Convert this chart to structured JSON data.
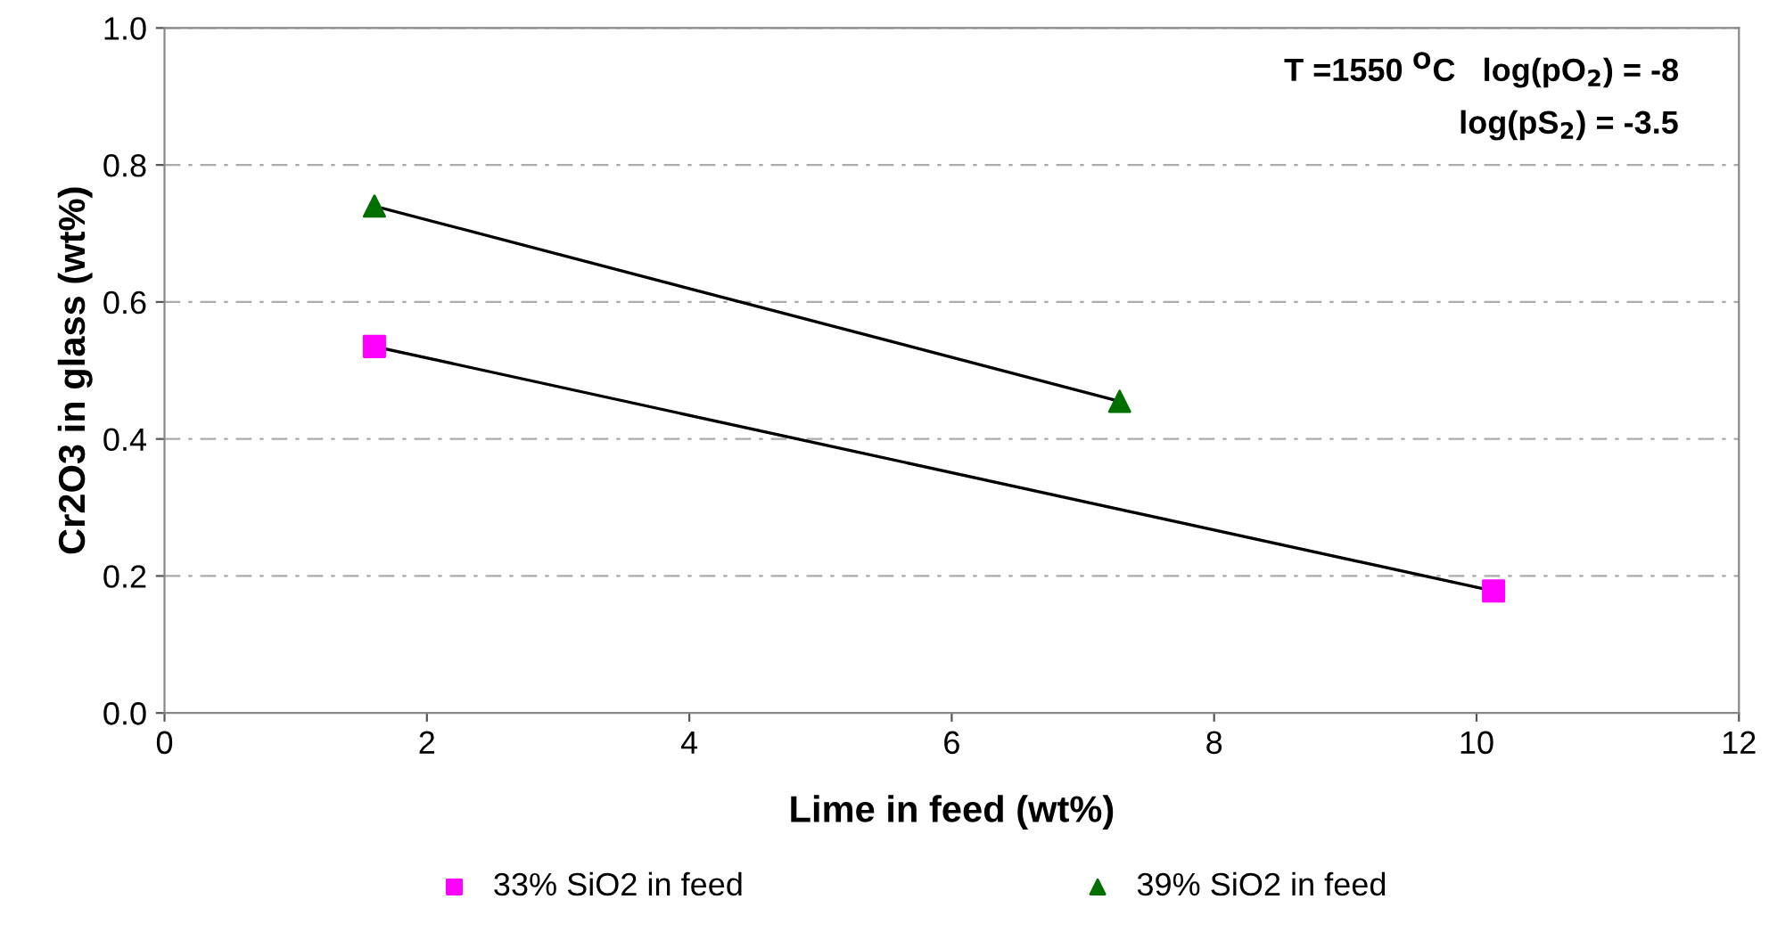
{
  "chart_data": {
    "type": "scatter",
    "xlabel": "Lime in feed (wt%)",
    "ylabel": "Cr2O3 in glass (wt%)",
    "xlim": [
      0,
      12
    ],
    "xticks": [
      0,
      2,
      4,
      6,
      8,
      10,
      12
    ],
    "ylim": [
      0,
      1
    ],
    "yticks": [
      {
        "value": 0,
        "label": "0.0"
      },
      {
        "value": 0.2,
        "label": "0.2"
      },
      {
        "value": 0.4,
        "label": "0.4"
      },
      {
        "value": 0.6,
        "label": "0.6"
      },
      {
        "value": 0.8,
        "label": "0.8"
      },
      {
        "value": 1,
        "label": "1.0"
      }
    ],
    "grid": "y",
    "legend": "bottom",
    "annotations": [
      "T =1550 $^{O}$C   log(pO$_{2}$) = -8",
      "log(pS$_{2}$) = -3.5"
    ],
    "series": [
      {
        "name": "33% SiO2 in feed",
        "marker": "square",
        "color": "#ff00ff",
        "x": [
          1.6,
          10.13
        ],
        "values": [
          0.535,
          0.178
        ]
      },
      {
        "name": "39% SiO2 in feed",
        "marker": "triangle",
        "color": "#007000",
        "x": [
          1.6,
          7.28
        ],
        "values": [
          0.74,
          0.455
        ]
      },
      {
        "type": "line",
        "marker": "none",
        "color": "#000000",
        "x": [
          1.6,
          10.13
        ],
        "values": [
          0.535,
          0.178
        ]
      },
      {
        "type": "line",
        "marker": "none",
        "color": "#000000",
        "x": [
          1.6,
          7.28
        ],
        "values": [
          0.74,
          0.455
        ]
      }
    ]
  }
}
